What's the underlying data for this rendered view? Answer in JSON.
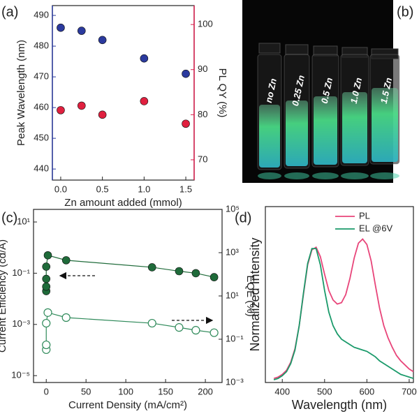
{
  "chart_data": [
    {
      "type": "scatter",
      "label": "(a)",
      "xlabel": "Zn amount added (mmol)",
      "ylabel": "Peak Wavelength (nm)",
      "y2label": "PL QY (%)",
      "ylabel_color": "#2b3a9e",
      "y2label_color": "#d81b4a",
      "x": [
        0,
        0.25,
        0.5,
        1,
        1.5
      ],
      "xlim": [
        -0.1,
        1.6
      ],
      "xticks": [
        {
          "value": 0,
          "label": "0.0"
        },
        0.5,
        {
          "value": 1,
          "label": "1.0"
        },
        1.5
      ],
      "ylim": [
        436.4,
        493.2
      ],
      "yticks": [
        440,
        450,
        460,
        470,
        480,
        490
      ],
      "y2lim": [
        65.5,
        104.2
      ],
      "y2ticks": [
        70,
        80,
        90,
        100
      ],
      "series": [
        {
          "color": "#2b3a9e",
          "marker": "filled",
          "values": [
            486,
            485,
            482,
            476,
            471
          ]
        },
        {
          "color": "#e0203f",
          "marker": "filled",
          "axis": "y2",
          "values": [
            81,
            82,
            80,
            83,
            78
          ]
        }
      ]
    },
    {
      "type": "image",
      "label": "(b)",
      "vial_labels": [
        "no Zn",
        "0.25 Zn",
        "0.5 Zn",
        "1.0 Zn",
        "1.5 Zn"
      ]
    },
    {
      "type": "scatter",
      "label": "(c)",
      "xlabel": "Current Density (mA/cm²)",
      "ylabel": "Current Efficiency (cd/A)",
      "y2label": "EQE (%)",
      "connect": true,
      "ylog": true,
      "y2log": true,
      "xlim": [
        -16,
        221
      ],
      "xticks": [
        0,
        50,
        100,
        150,
        200
      ],
      "ylim": [
        5.4e-06,
        31
      ],
      "yticks": [
        {
          "value": 1e-05,
          "label": "10⁻⁵"
        },
        {
          "value": 0.001,
          "label": "10⁻³"
        },
        {
          "value": 0.1,
          "label": "10⁻¹"
        },
        {
          "value": 10,
          "label": "10¹"
        }
      ],
      "y2lim": [
        0.001,
        100000
      ],
      "y2ticks": [
        {
          "value": 0.001,
          "label": "10⁻³"
        },
        {
          "value": 0.1,
          "label": "10⁻¹"
        },
        {
          "value": 10,
          "label": "10¹"
        },
        {
          "value": 1000,
          "label": "10³"
        },
        {
          "value": 100000,
          "label": "10⁵"
        }
      ],
      "series": [
        {
          "color": "#1f6b3a",
          "marker": "filled",
          "x": [
            0,
            0,
            0,
            0,
            2,
            25,
            133,
            167,
            188,
            211
          ],
          "values": [
            0.02,
            0.03,
            0.06,
            0.18,
            0.5,
            0.32,
            0.17,
            0.12,
            0.1,
            0.07
          ]
        },
        {
          "color": "#2f8a5a",
          "marker": "open",
          "axis": "y2",
          "x": [
            0,
            0,
            0,
            2,
            25,
            133,
            167,
            188,
            211
          ],
          "values": [
            0.033,
            0.055,
            0.55,
            1.7,
            1.0,
            0.55,
            0.35,
            0.26,
            0.2
          ]
        }
      ]
    },
    {
      "type": "line",
      "label": "(d)",
      "xlabel": "Wavelength (nm)",
      "ylabel": "Normalized Intensity",
      "legend": "top-right",
      "x": [
        380,
        390,
        400,
        410,
        420,
        430,
        440,
        450,
        460,
        470,
        480,
        490,
        500,
        510,
        520,
        530,
        540,
        550,
        560,
        570,
        580,
        590,
        600,
        610,
        620,
        630,
        640,
        650,
        660,
        670,
        680,
        690,
        700,
        710
      ],
      "xlim": [
        360,
        710
      ],
      "xticks": [
        400,
        500,
        600,
        700
      ],
      "ylim": [
        0,
        1.3
      ],
      "series": [
        {
          "name": "PL",
          "color": "#e8457a",
          "values": [
            0.03,
            0.04,
            0.06,
            0.09,
            0.15,
            0.25,
            0.42,
            0.65,
            0.87,
            0.98,
            1.0,
            0.93,
            0.8,
            0.68,
            0.61,
            0.58,
            0.59,
            0.65,
            0.77,
            0.92,
            1.03,
            1.06,
            1.02,
            0.9,
            0.72,
            0.55,
            0.42,
            0.33,
            0.26,
            0.2,
            0.16,
            0.13,
            0.1,
            0.08
          ]
        },
        {
          "name": "EL @6V",
          "color": "#1a9a6a",
          "values": [
            0.02,
            0.03,
            0.05,
            0.08,
            0.14,
            0.24,
            0.42,
            0.66,
            0.88,
            0.99,
            0.99,
            0.87,
            0.68,
            0.52,
            0.42,
            0.36,
            0.32,
            0.3,
            0.28,
            0.26,
            0.25,
            0.24,
            0.23,
            0.21,
            0.19,
            0.16,
            0.14,
            0.12,
            0.1,
            0.08,
            0.06,
            0.05,
            0.04,
            0.03
          ]
        }
      ]
    }
  ]
}
